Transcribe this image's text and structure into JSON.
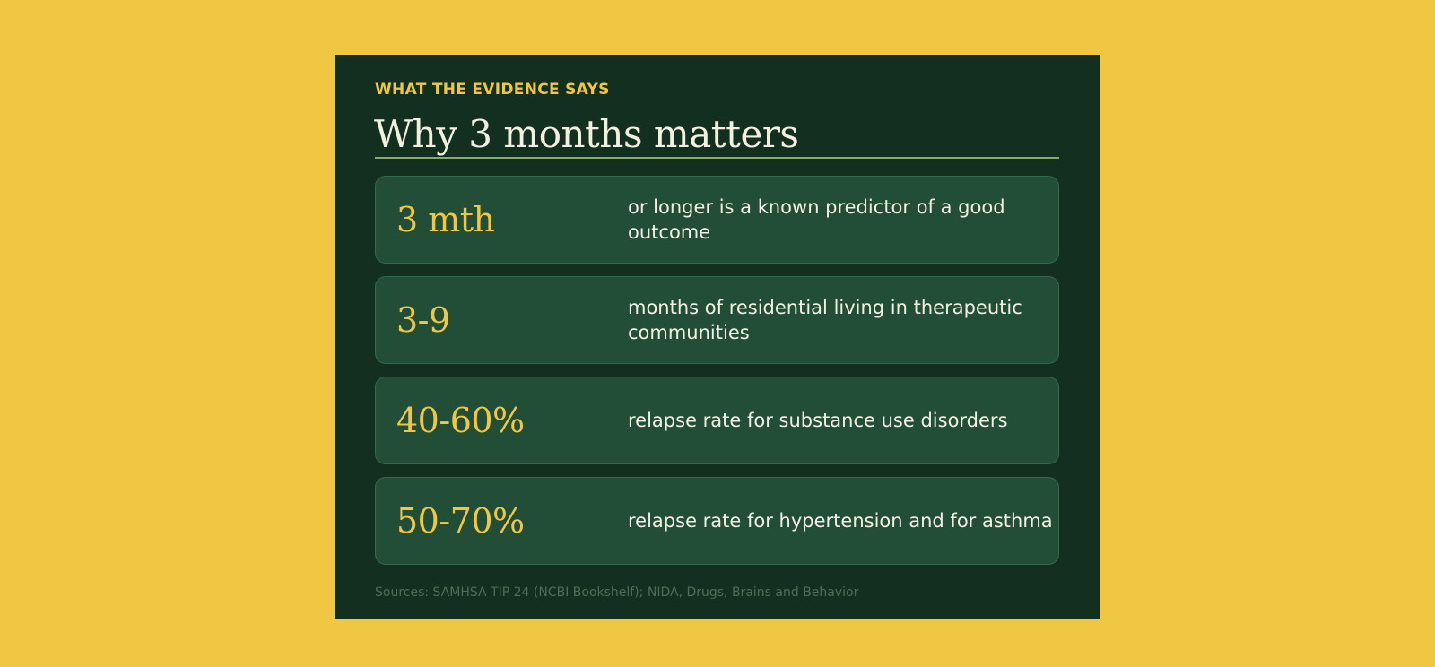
{
  "card": {
    "eyebrow": "WHAT THE EVIDENCE SAYS",
    "title": "Why 3 months matters",
    "stats": [
      {
        "value": "3 mth",
        "description": "or longer is a known predictor of a good outcome"
      },
      {
        "value": "3-9",
        "description": "months of residential living in therapeutic communities"
      },
      {
        "value": "40-60%",
        "description": "relapse rate for substance use disorders"
      },
      {
        "value": "50-70%",
        "description": "relapse rate for hypertension and for asthma"
      }
    ],
    "sources": "Sources: SAMHSA TIP 24 (NCBI Bookshelf); NIDA, Drugs, Brains and Behavior"
  },
  "colors": {
    "background": "#f0c742",
    "card": "#122f1f",
    "stat_box": "#224e38",
    "accent": "#f0c742",
    "text": "#f3f0e2"
  }
}
